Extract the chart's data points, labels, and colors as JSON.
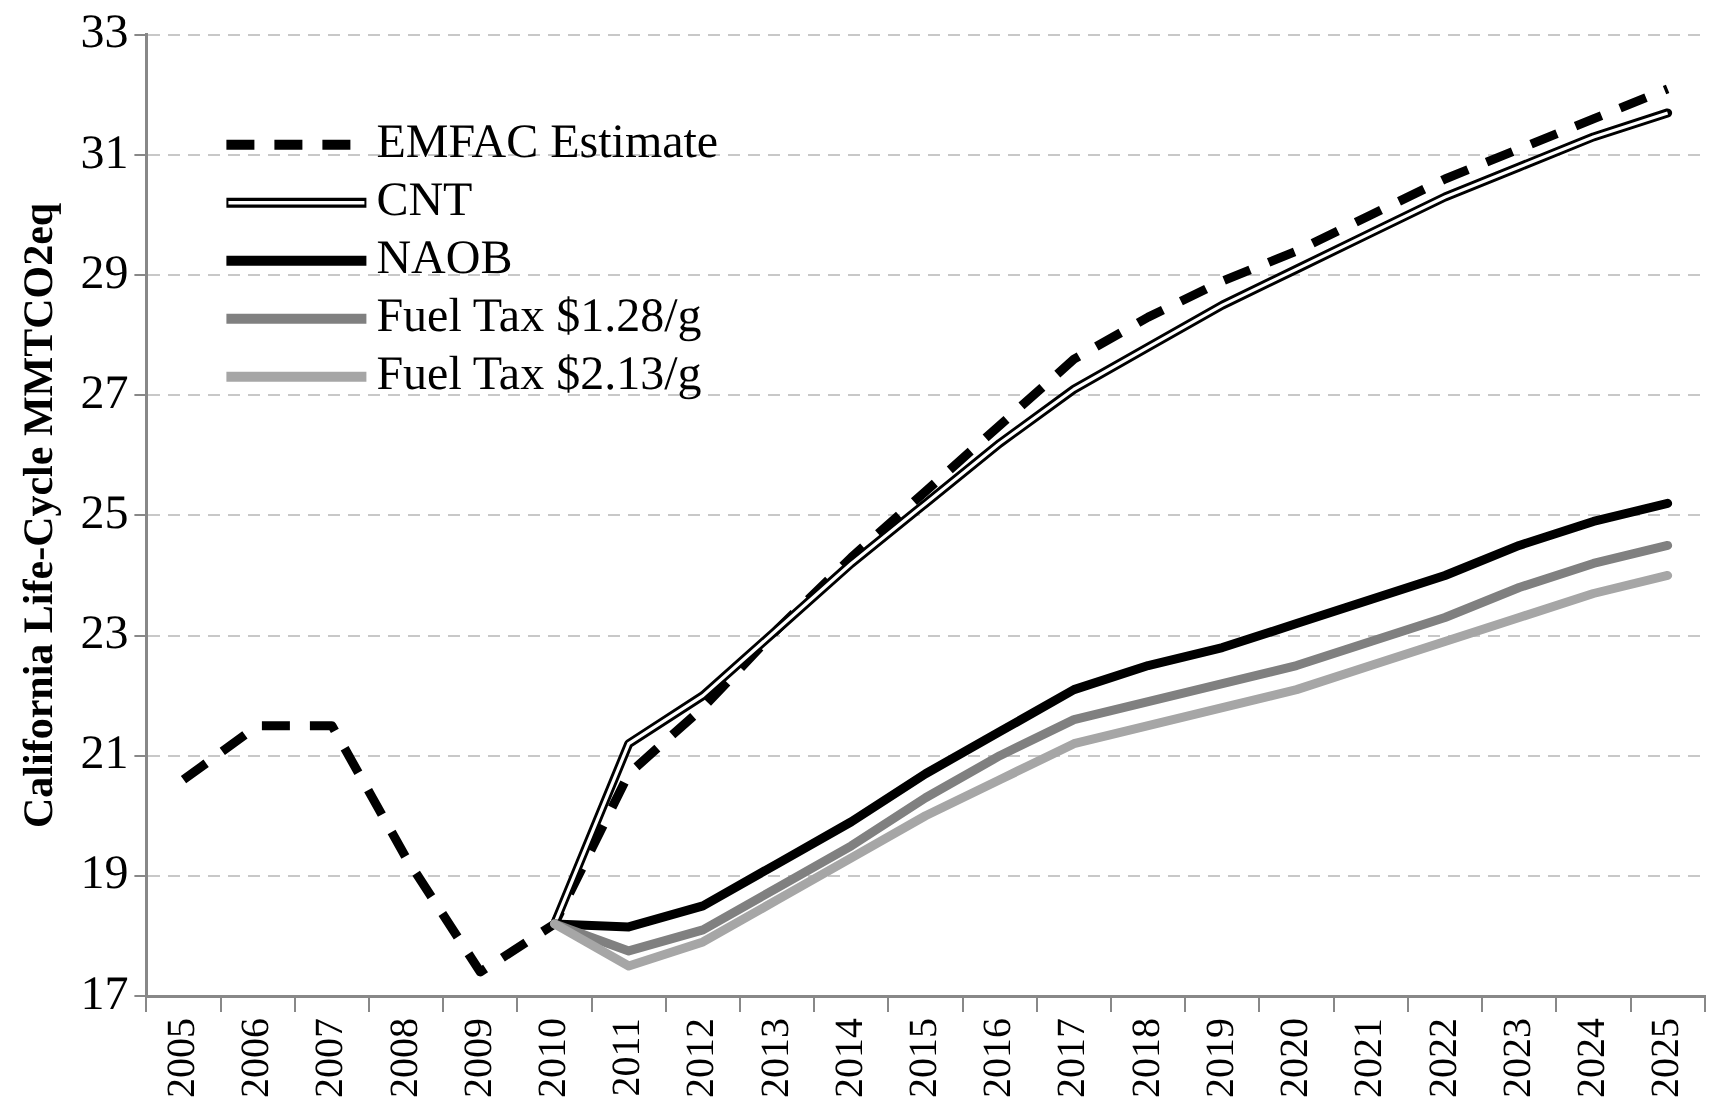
{
  "chart_data": {
    "type": "line",
    "ylabel": "California Life-Cycle MMTCO2eq",
    "categories": [
      "2005",
      "2006",
      "2007",
      "2008",
      "2009",
      "2010",
      "2011",
      "2012",
      "2013",
      "2014",
      "2015",
      "2016",
      "2017",
      "2018",
      "2019",
      "2020",
      "2021",
      "2022",
      "2023",
      "2024",
      "2025"
    ],
    "series": [
      {
        "name": "EMFAC Estimate",
        "color": "#000000",
        "line_style": "dashed",
        "values": [
          20.6,
          21.5,
          21.5,
          19.3,
          17.4,
          18.2,
          20.7,
          21.8,
          23.1,
          24.3,
          25.4,
          26.5,
          27.6,
          28.3,
          28.9,
          29.4,
          30.0,
          30.6,
          31.1,
          31.6,
          32.1
        ]
      },
      {
        "name": "CNT",
        "color": "#000000",
        "line_style": "solid",
        "values": [
          null,
          null,
          null,
          null,
          null,
          18.2,
          21.2,
          22.0,
          23.1,
          24.2,
          25.2,
          26.2,
          27.1,
          27.8,
          28.5,
          29.1,
          29.7,
          30.3,
          30.8,
          31.3,
          31.7
        ]
      },
      {
        "name": "NAOB",
        "color": "#000000",
        "line_style": "solid",
        "values": [
          null,
          null,
          null,
          null,
          null,
          18.2,
          18.15,
          18.5,
          19.2,
          19.9,
          20.7,
          21.4,
          22.1,
          22.5,
          22.8,
          23.2,
          23.6,
          24.0,
          24.5,
          24.9,
          25.2
        ]
      },
      {
        "name": "Fuel Tax $1.28/g",
        "color": "#808080",
        "line_style": "solid",
        "values": [
          null,
          null,
          null,
          null,
          null,
          18.2,
          17.75,
          18.1,
          18.8,
          19.5,
          20.3,
          21.0,
          21.6,
          21.9,
          22.2,
          22.5,
          22.9,
          23.3,
          23.8,
          24.2,
          24.5
        ]
      },
      {
        "name": "Fuel Tax $2.13/g",
        "color": "#a6a6a6",
        "line_style": "solid",
        "values": [
          null,
          null,
          null,
          null,
          null,
          18.2,
          17.5,
          17.9,
          18.6,
          19.3,
          20.0,
          20.6,
          21.2,
          21.5,
          21.8,
          22.1,
          22.5,
          22.9,
          23.3,
          23.7,
          24.0
        ]
      }
    ],
    "ylim": [
      17,
      33
    ],
    "yticks": [
      17,
      19,
      21,
      23,
      25,
      27,
      29,
      31,
      33
    ],
    "grid": "y",
    "legend": "top left",
    "marker": "none"
  }
}
